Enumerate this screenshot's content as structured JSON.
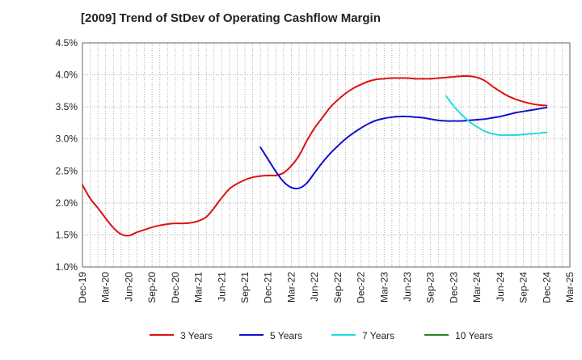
{
  "chart_data": {
    "type": "line",
    "title": "[2009]  Trend of StDev of Operating Cashflow Margin",
    "xlabel": "",
    "ylabel": "",
    "ylim": [
      1.0,
      4.5
    ],
    "yticks": [
      "1.0%",
      "1.5%",
      "2.0%",
      "2.5%",
      "3.0%",
      "3.5%",
      "4.0%",
      "4.5%"
    ],
    "yvalues": [
      1.0,
      1.5,
      2.0,
      2.5,
      3.0,
      3.5,
      4.0,
      4.5
    ],
    "x_range": [
      "Dec-19",
      "Mar-25"
    ],
    "x_tick_labels": [
      "Dec-19",
      "Mar-20",
      "Jun-20",
      "Sep-20",
      "Dec-20",
      "Mar-21",
      "Jun-21",
      "Sep-21",
      "Dec-21",
      "Mar-22",
      "Jun-22",
      "Sep-22",
      "Dec-22",
      "Mar-23",
      "Jun-23",
      "Sep-23",
      "Dec-23",
      "Mar-24",
      "Jun-24",
      "Sep-24",
      "Dec-24",
      "Mar-25"
    ],
    "grid": true,
    "legend_position": "bottom",
    "series": [
      {
        "name": "3 Years",
        "color": "#dd1111",
        "points": [
          [
            "Dec-19",
            2.28
          ],
          [
            "Jan-20",
            2.07
          ],
          [
            "Feb-20",
            1.92
          ],
          [
            "Mar-20",
            1.76
          ],
          [
            "Apr-20",
            1.61
          ],
          [
            "May-20",
            1.51
          ],
          [
            "Jun-20",
            1.49
          ],
          [
            "Jul-20",
            1.54
          ],
          [
            "Aug-20",
            1.58
          ],
          [
            "Sep-20",
            1.62
          ],
          [
            "Oct-20",
            1.65
          ],
          [
            "Nov-20",
            1.67
          ],
          [
            "Dec-20",
            1.68
          ],
          [
            "Jan-21",
            1.68
          ],
          [
            "Feb-21",
            1.69
          ],
          [
            "Mar-21",
            1.72
          ],
          [
            "Apr-21",
            1.78
          ],
          [
            "May-21",
            1.92
          ],
          [
            "Jun-21",
            2.08
          ],
          [
            "Jul-21",
            2.22
          ],
          [
            "Aug-21",
            2.3
          ],
          [
            "Sep-21",
            2.36
          ],
          [
            "Oct-21",
            2.4
          ],
          [
            "Nov-21",
            2.42
          ],
          [
            "Dec-21",
            2.43
          ],
          [
            "Jan-22",
            2.43
          ],
          [
            "Feb-22",
            2.47
          ],
          [
            "Mar-22",
            2.58
          ],
          [
            "Apr-22",
            2.74
          ],
          [
            "May-22",
            2.97
          ],
          [
            "Jun-22",
            3.17
          ],
          [
            "Jul-22",
            3.33
          ],
          [
            "Aug-22",
            3.49
          ],
          [
            "Sep-22",
            3.61
          ],
          [
            "Oct-22",
            3.71
          ],
          [
            "Nov-22",
            3.79
          ],
          [
            "Dec-22",
            3.85
          ],
          [
            "Jan-23",
            3.9
          ],
          [
            "Feb-23",
            3.93
          ],
          [
            "Mar-23",
            3.94
          ],
          [
            "Apr-23",
            3.95
          ],
          [
            "May-23",
            3.95
          ],
          [
            "Jun-23",
            3.95
          ],
          [
            "Jul-23",
            3.94
          ],
          [
            "Aug-23",
            3.94
          ],
          [
            "Sep-23",
            3.94
          ],
          [
            "Oct-23",
            3.95
          ],
          [
            "Nov-23",
            3.96
          ],
          [
            "Dec-23",
            3.97
          ],
          [
            "Jan-24",
            3.98
          ],
          [
            "Feb-24",
            3.98
          ],
          [
            "Mar-24",
            3.96
          ],
          [
            "Apr-24",
            3.91
          ],
          [
            "May-24",
            3.82
          ],
          [
            "Jun-24",
            3.74
          ],
          [
            "Jul-24",
            3.67
          ],
          [
            "Aug-24",
            3.62
          ],
          [
            "Sep-24",
            3.58
          ],
          [
            "Oct-24",
            3.55
          ],
          [
            "Nov-24",
            3.53
          ],
          [
            "Dec-24",
            3.52
          ]
        ]
      },
      {
        "name": "5 Years",
        "color": "#1111cc",
        "points": [
          [
            "Nov-21",
            2.87
          ],
          [
            "Dec-21",
            2.68
          ],
          [
            "Jan-22",
            2.49
          ],
          [
            "Feb-22",
            2.33
          ],
          [
            "Mar-22",
            2.24
          ],
          [
            "Apr-22",
            2.23
          ],
          [
            "May-22",
            2.31
          ],
          [
            "Jun-22",
            2.47
          ],
          [
            "Jul-22",
            2.63
          ],
          [
            "Aug-22",
            2.77
          ],
          [
            "Sep-22",
            2.89
          ],
          [
            "Oct-22",
            3.0
          ],
          [
            "Nov-22",
            3.09
          ],
          [
            "Dec-22",
            3.17
          ],
          [
            "Jan-23",
            3.24
          ],
          [
            "Feb-23",
            3.29
          ],
          [
            "Mar-23",
            3.32
          ],
          [
            "Apr-23",
            3.34
          ],
          [
            "May-23",
            3.35
          ],
          [
            "Jun-23",
            3.35
          ],
          [
            "Jul-23",
            3.34
          ],
          [
            "Aug-23",
            3.33
          ],
          [
            "Sep-23",
            3.31
          ],
          [
            "Oct-23",
            3.29
          ],
          [
            "Nov-23",
            3.28
          ],
          [
            "Dec-23",
            3.28
          ],
          [
            "Jan-24",
            3.28
          ],
          [
            "Feb-24",
            3.29
          ],
          [
            "Mar-24",
            3.3
          ],
          [
            "Apr-24",
            3.31
          ],
          [
            "May-24",
            3.33
          ],
          [
            "Jun-24",
            3.35
          ],
          [
            "Jul-24",
            3.38
          ],
          [
            "Aug-24",
            3.41
          ],
          [
            "Sep-24",
            3.43
          ],
          [
            "Oct-24",
            3.45
          ],
          [
            "Nov-24",
            3.47
          ],
          [
            "Dec-24",
            3.49
          ]
        ]
      },
      {
        "name": "7 Years",
        "color": "#22dddd",
        "points": [
          [
            "Nov-23",
            3.67
          ],
          [
            "Dec-23",
            3.51
          ],
          [
            "Jan-24",
            3.38
          ],
          [
            "Feb-24",
            3.27
          ],
          [
            "Mar-24",
            3.19
          ],
          [
            "Apr-24",
            3.12
          ],
          [
            "May-24",
            3.08
          ],
          [
            "Jun-24",
            3.06
          ],
          [
            "Jul-24",
            3.06
          ],
          [
            "Aug-24",
            3.06
          ],
          [
            "Sep-24",
            3.07
          ],
          [
            "Oct-24",
            3.08
          ],
          [
            "Nov-24",
            3.09
          ],
          [
            "Dec-24",
            3.1
          ]
        ]
      },
      {
        "name": "10 Years",
        "color": "#228822",
        "points": []
      }
    ]
  }
}
